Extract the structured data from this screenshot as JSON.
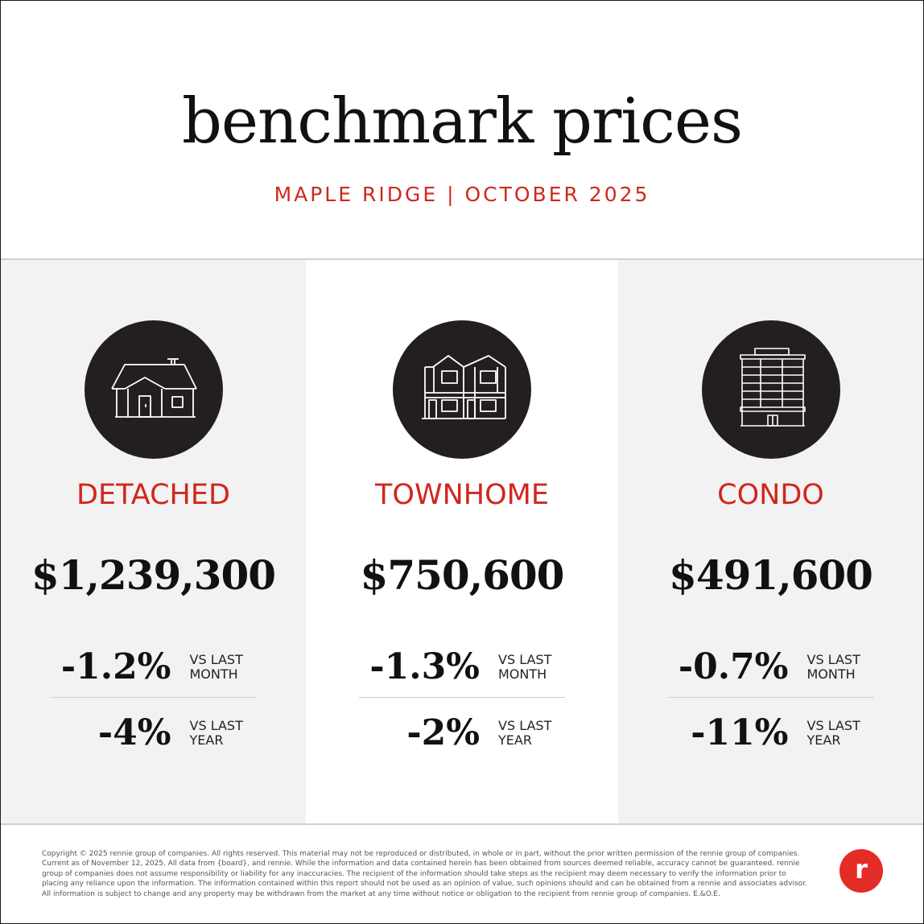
{
  "header": {
    "title": "benchmark prices",
    "subtitle": "MAPLE RIDGE | OCTOBER 2025"
  },
  "colors": {
    "accent_red": "#d0271d",
    "icon_circle": "#231f20",
    "panel_gray": "#f2f2f2",
    "logo_red": "#e42c26"
  },
  "panels": [
    {
      "icon": "detached-house-icon",
      "type": "DETACHED",
      "price": "$1,239,300",
      "month_change": "-1.2%",
      "month_label": [
        "VS LAST",
        "MONTH"
      ],
      "year_change": "-4%",
      "year_label": [
        "VS LAST",
        "YEAR"
      ]
    },
    {
      "icon": "townhome-icon",
      "type": "TOWNHOME",
      "price": "$750,600",
      "month_change": "-1.3%",
      "month_label": [
        "VS LAST",
        "MONTH"
      ],
      "year_change": "-2%",
      "year_label": [
        "VS LAST",
        "YEAR"
      ]
    },
    {
      "icon": "condo-building-icon",
      "type": "CONDO",
      "price": "$491,600",
      "month_change": "-0.7%",
      "month_label": [
        "VS LAST",
        "MONTH"
      ],
      "year_change": "-11%",
      "year_label": [
        "VS LAST",
        "YEAR"
      ]
    }
  ],
  "footer": {
    "copyright": "Copyright © 2025 rennie group of companies. All rights reserved. This material may not be reproduced or distributed, in whole or in part, without the prior written permission of the rennie group of companies. Current as of November 12, 2025. All data from {board}, and rennie. While the information and data contained herein has been obtained from sources deemed reliable, accuracy cannot be guaranteed. rennie group of companies does not assume responsibility or liability for any inaccuracies. The recipient of the information should take steps as the recipient may deem necessary to verify the information prior to placing any reliance upon the information. The information contained within this report should not be used as an opinion of value, such opinions should and can be obtained from a rennie and associates advisor. All information is subject to change and any property may be withdrawn from the market at any time without notice or obligation to the recipient from rennie group of companies. E.&O.E.",
    "logo_icon": "rennie-logo-icon"
  }
}
